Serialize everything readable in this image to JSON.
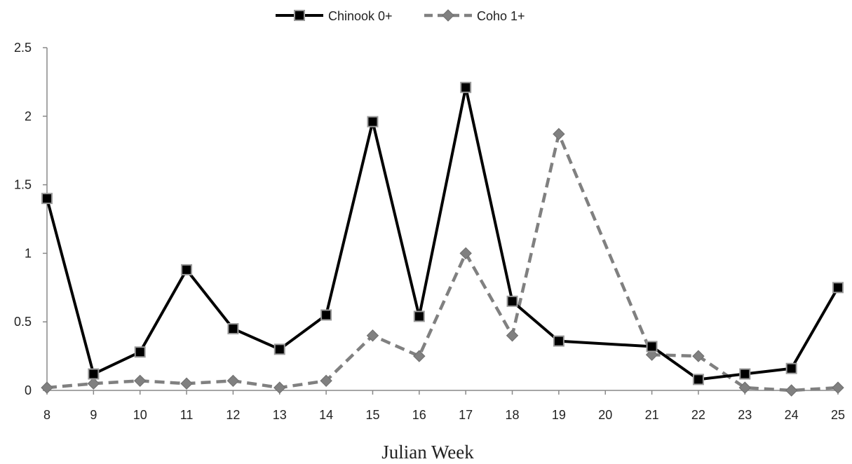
{
  "chart_data": {
    "type": "line",
    "title": "",
    "xlabel": "Julian Week",
    "ylabel": "",
    "x": [
      8,
      9,
      10,
      11,
      12,
      13,
      14,
      15,
      16,
      17,
      18,
      19,
      20,
      21,
      22,
      23,
      24,
      25
    ],
    "x_tick_labels": [
      "8",
      "9",
      "10",
      "11",
      "12",
      "13",
      "14",
      "15",
      "16",
      "17",
      "18",
      "19",
      "20",
      "21",
      "22",
      "23",
      "24",
      "25"
    ],
    "ylim": [
      0,
      2.5
    ],
    "y_ticks": [
      0,
      0.5,
      1,
      1.5,
      2,
      2.5
    ],
    "y_tick_labels": [
      "0",
      "0.5",
      "1",
      "1.5",
      "2",
      "2.5"
    ],
    "grid": false,
    "legend_position": "top-center",
    "series": [
      {
        "name": "Chinook 0+",
        "style": "solid",
        "marker": "square",
        "color": "#000000",
        "points": [
          [
            8,
            1.4
          ],
          [
            9,
            0.12
          ],
          [
            10,
            0.28
          ],
          [
            11,
            0.88
          ],
          [
            12,
            0.45
          ],
          [
            13,
            0.3
          ],
          [
            14,
            0.55
          ],
          [
            15,
            1.96
          ],
          [
            16,
            0.54
          ],
          [
            17,
            2.21
          ],
          [
            18,
            0.65
          ],
          [
            19,
            0.36
          ],
          [
            21,
            0.32
          ],
          [
            22,
            0.08
          ],
          [
            23,
            0.12
          ],
          [
            24,
            0.16
          ],
          [
            25,
            0.75
          ]
        ]
      },
      {
        "name": "Coho 1+",
        "style": "dashed",
        "marker": "diamond",
        "color": "#808080",
        "points": [
          [
            8,
            0.02
          ],
          [
            9,
            0.05
          ],
          [
            10,
            0.07
          ],
          [
            11,
            0.05
          ],
          [
            12,
            0.07
          ],
          [
            13,
            0.02
          ],
          [
            14,
            0.07
          ],
          [
            15,
            0.4
          ],
          [
            16,
            0.25
          ],
          [
            17,
            1.0
          ],
          [
            18,
            0.4
          ],
          [
            19,
            1.87
          ],
          [
            21,
            0.26
          ],
          [
            22,
            0.25
          ],
          [
            23,
            0.02
          ],
          [
            24,
            0.0
          ],
          [
            25,
            0.02
          ]
        ]
      }
    ]
  }
}
